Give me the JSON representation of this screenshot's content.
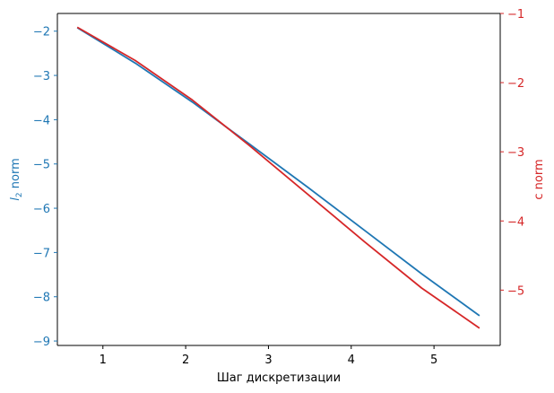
{
  "chart_data": {
    "type": "line",
    "xlabel": "Шаг дискретизации",
    "x": [
      0.69,
      1.39,
      2.08,
      2.77,
      3.47,
      4.16,
      4.85,
      5.55
    ],
    "xlim": [
      0.45,
      5.8
    ],
    "xticks": [
      1,
      2,
      3,
      4,
      5
    ],
    "grid": false,
    "left_axis": {
      "label_main": "l",
      "label_sub": "2",
      "label_rest": " norm",
      "color": "#1f77b4",
      "ylim": [
        -9.1,
        -1.6
      ],
      "ticks": [
        -2,
        -3,
        -4,
        -5,
        -6,
        -7,
        -8,
        -9
      ]
    },
    "right_axis": {
      "label": "c norm",
      "color": "#d62728",
      "ylim": [
        -5.8,
        -1.0
      ],
      "ticks": [
        -1,
        -2,
        -3,
        -4,
        -5
      ]
    },
    "series": [
      {
        "axis": "left",
        "color": "#1f77b4",
        "values": [
          -1.92,
          -2.72,
          -3.6,
          -4.55,
          -5.52,
          -6.5,
          -7.48,
          -8.43
        ]
      },
      {
        "axis": "right",
        "color": "#d62728",
        "values": [
          -1.2,
          -1.68,
          -2.25,
          -2.91,
          -3.61,
          -4.3,
          -4.97,
          -5.55
        ]
      }
    ]
  }
}
